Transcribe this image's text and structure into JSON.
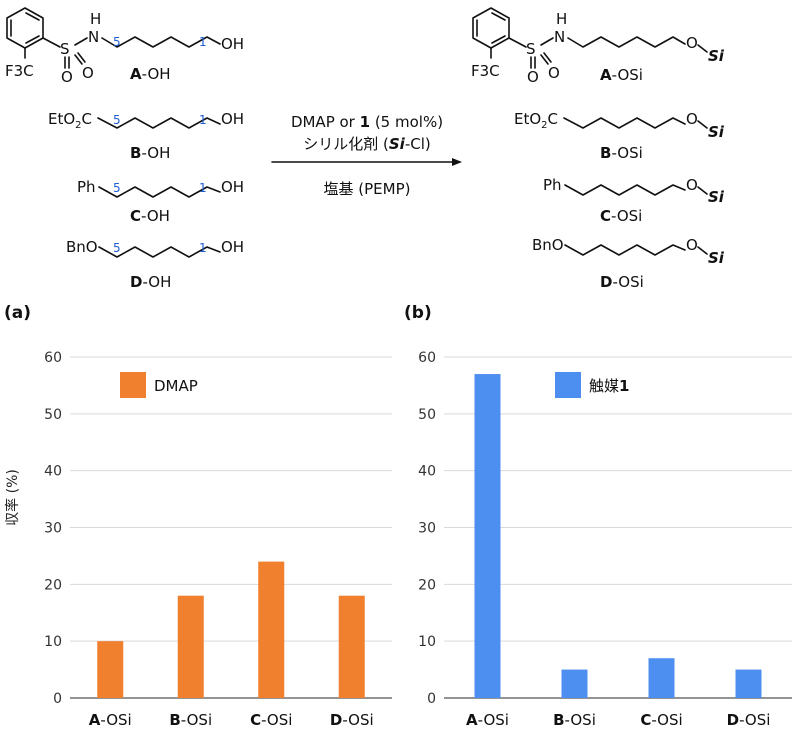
{
  "scheme": {
    "reactants": [
      {
        "id": "A-OH",
        "letter": "A",
        "suffix": "-OH",
        "group_lines": [
          "F3C"
        ],
        "pos5": "5",
        "pos1": "1",
        "oh": "OH"
      },
      {
        "id": "B-OH",
        "letter": "B",
        "suffix": "-OH",
        "prefix": "EtO2C",
        "pos5": "5",
        "pos1": "1",
        "oh": "OH"
      },
      {
        "id": "C-OH",
        "letter": "C",
        "suffix": "-OH",
        "prefix": "Ph",
        "pos5": "5",
        "pos1": "1",
        "oh": "OH"
      },
      {
        "id": "D-OH",
        "letter": "D",
        "suffix": "-OH",
        "prefix": "BnO",
        "pos5": "5",
        "pos1": "1",
        "oh": "OH"
      }
    ],
    "products": [
      {
        "letter": "A",
        "suffix": "-OSi"
      },
      {
        "letter": "B",
        "suffix": "-OSi",
        "prefix": "EtO2C"
      },
      {
        "letter": "C",
        "suffix": "-OSi",
        "prefix": "Ph"
      },
      {
        "letter": "D",
        "suffix": "-OSi",
        "prefix": "BnO"
      }
    ],
    "arrow": {
      "line1_a": "DMAP or ",
      "line1_b": "1",
      "line1_c": " (5 mol%)",
      "line2_a": "シリル化剤 (",
      "line2_b": "Si",
      "line2_c": "-Cl)",
      "line3": "塩基 (PEMP)"
    },
    "atoms": {
      "N": "N",
      "H": "H",
      "S": "S",
      "O": "O",
      "F3C": "F3C",
      "Si": "Si"
    }
  },
  "chart_data": [
    {
      "panel": "(a)",
      "type": "bar",
      "ylabel": "収率 (%)",
      "ylim": [
        0,
        60
      ],
      "yticks": [
        0,
        10,
        20,
        30,
        40,
        50,
        60
      ],
      "grid": true,
      "categories": [
        {
          "bold": "A",
          "rest": "-OSi"
        },
        {
          "bold": "B",
          "rest": "-OSi"
        },
        {
          "bold": "C",
          "rest": "-OSi"
        },
        {
          "bold": "D",
          "rest": "-OSi"
        }
      ],
      "series": [
        {
          "name": "DMAP",
          "values": [
            10,
            18,
            24,
            18
          ],
          "color": "#f07f2e"
        }
      ],
      "legend": {
        "placement": "top-left",
        "label": "DMAP",
        "label_bold": ""
      }
    },
    {
      "panel": "(b)",
      "type": "bar",
      "ylabel": "",
      "ylim": [
        0,
        60
      ],
      "yticks": [
        0,
        10,
        20,
        30,
        40,
        50,
        60
      ],
      "grid": true,
      "categories": [
        {
          "bold": "A",
          "rest": "-OSi"
        },
        {
          "bold": "B",
          "rest": "-OSi"
        },
        {
          "bold": "C",
          "rest": "-OSi"
        },
        {
          "bold": "D",
          "rest": "-OSi"
        }
      ],
      "series": [
        {
          "name": "触媒1",
          "values": [
            57,
            5,
            7,
            5
          ],
          "color": "#4d8ff0"
        }
      ],
      "legend": {
        "placement": "top-right",
        "label": "触媒",
        "label_bold": "1"
      }
    }
  ]
}
